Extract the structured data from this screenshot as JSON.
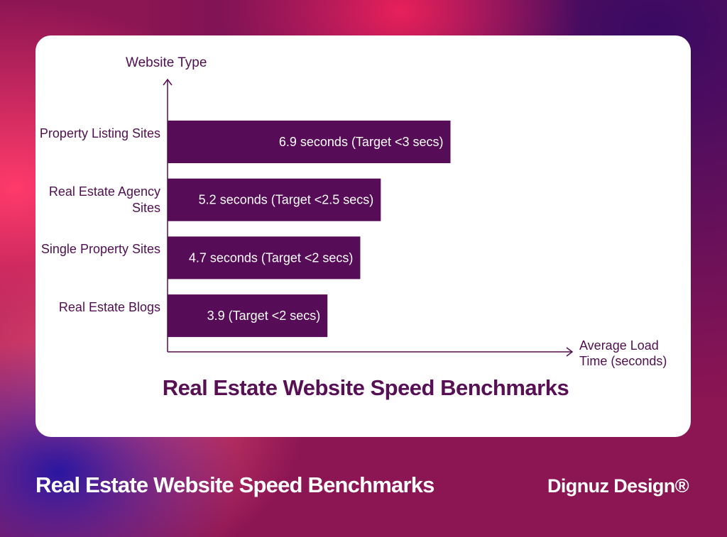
{
  "colors": {
    "bar": "#560c56",
    "axis": "#560c56",
    "text": "#4f0f50",
    "card": "#ffffff"
  },
  "chart_data": {
    "type": "bar",
    "orientation": "horizontal",
    "title": "Real Estate Website Speed Benchmarks",
    "ylabel": "Website Type",
    "xlabel": "Average Load Time (seconds)",
    "categories": [
      "Property Listing Sites",
      "Real Estate Agency Sites",
      "Single Property Sites",
      "Real Estate Blogs"
    ],
    "values": [
      6.9,
      5.2,
      4.7,
      3.9
    ],
    "data_labels": [
      "6.9 seconds (Target <3 secs)",
      "5.2 seconds (Target <2.5 secs)",
      "4.7 seconds (Target <2 secs)",
      "3.9 (Target <2 secs)"
    ],
    "xlim": [
      0,
      9.8
    ],
    "grid": false,
    "legend": "none"
  },
  "footer": {
    "title": "Real Estate Website Speed Benchmarks",
    "brand": "Dignuz Design®"
  }
}
